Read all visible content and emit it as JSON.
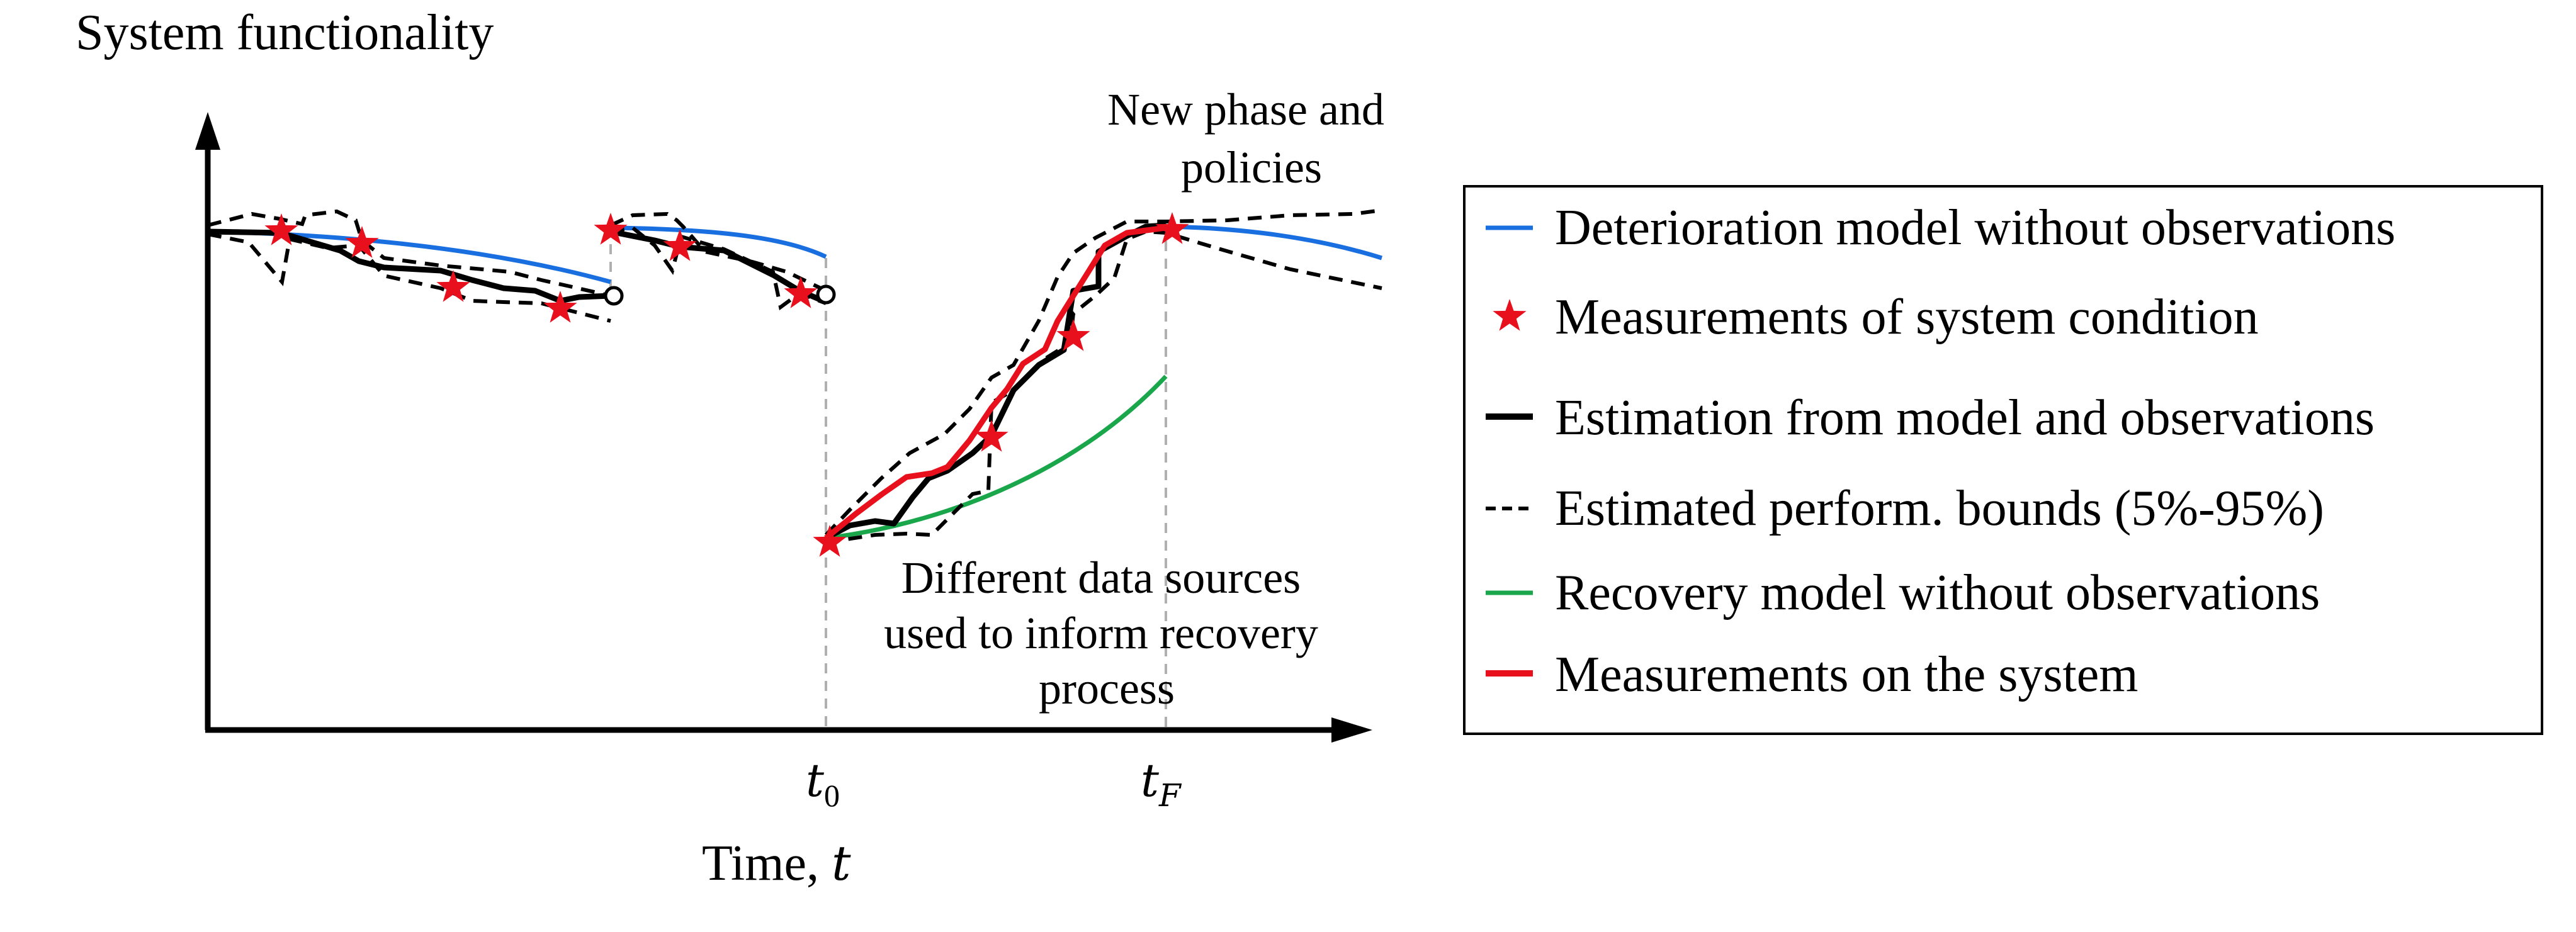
{
  "diagram": {
    "y_axis_label": "System functionality",
    "x_axis_label_text": "Time, ",
    "x_axis_label_var": "t",
    "tick_t0_main": "t",
    "tick_t0_sub": "0",
    "tick_tF_main": "t",
    "tick_tF_sub": "F",
    "annotation_top": [
      "New phase and",
      "policies"
    ],
    "annotation_bottom": [
      "Different data sources",
      "used to inform recovery",
      "process"
    ]
  },
  "legend": {
    "items": [
      {
        "label": "Deterioration model without observations",
        "symbol": "line",
        "color": "#1a6fe0"
      },
      {
        "label": "Measurements of system condition",
        "symbol": "star",
        "color": "#e8101c"
      },
      {
        "label": "Estimation from model and observations",
        "symbol": "line",
        "color": "#000000"
      },
      {
        "label": "Estimated perform. bounds (5%-95%)",
        "symbol": "dashed",
        "color": "#000000"
      },
      {
        "label": "Recovery model without observations",
        "symbol": "line",
        "color": "#1aa64a"
      },
      {
        "label": "Measurements on the system",
        "symbol": "line",
        "color": "#e8101c"
      }
    ]
  },
  "colors": {
    "deterioration": "#1a6fe0",
    "measurement_star": "#e8101c",
    "estimation": "#000000",
    "bounds": "#000000",
    "recovery": "#1aa64a",
    "system_measurement": "#e8101c",
    "guide": "#b0b0b0"
  }
}
